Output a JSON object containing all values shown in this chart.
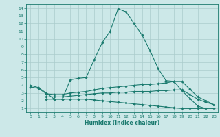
{
  "xlabel": "Humidex (Indice chaleur)",
  "background_color": "#cce8e8",
  "grid_color": "#aacccc",
  "line_color": "#1a7a6e",
  "xlim": [
    -0.5,
    23.5
  ],
  "ylim": [
    0.5,
    14.5
  ],
  "xticks": [
    0,
    1,
    2,
    3,
    4,
    5,
    6,
    7,
    8,
    9,
    10,
    11,
    12,
    13,
    14,
    15,
    16,
    17,
    18,
    19,
    20,
    21,
    22,
    23
  ],
  "yticks": [
    1,
    2,
    3,
    4,
    5,
    6,
    7,
    8,
    9,
    10,
    11,
    12,
    13,
    14
  ],
  "line1_x": [
    0,
    1,
    2,
    3,
    4,
    5,
    6,
    7,
    8,
    9,
    10,
    11,
    12,
    13,
    14,
    15,
    16,
    17,
    18,
    19,
    20,
    21,
    22
  ],
  "line1_y": [
    4.0,
    3.7,
    3.0,
    2.2,
    2.2,
    4.7,
    4.9,
    5.0,
    7.3,
    9.5,
    11.0,
    13.9,
    13.5,
    12.0,
    10.5,
    8.5,
    6.2,
    4.6,
    4.5,
    3.3,
    2.3,
    1.3,
    1.0
  ],
  "line2_x": [
    0,
    1,
    2,
    3,
    4,
    5,
    6,
    7,
    8,
    9,
    10,
    11,
    12,
    13,
    14,
    15,
    16,
    17,
    18,
    19,
    20,
    21,
    22,
    23
  ],
  "line2_y": [
    3.8,
    3.6,
    2.9,
    2.8,
    2.8,
    3.0,
    3.1,
    3.2,
    3.4,
    3.6,
    3.7,
    3.8,
    3.9,
    4.0,
    4.1,
    4.1,
    4.2,
    4.3,
    4.5,
    4.5,
    3.5,
    2.5,
    2.0,
    1.5
  ],
  "line3_x": [
    2,
    3,
    4,
    5,
    6,
    7,
    8,
    9,
    10,
    11,
    12,
    13,
    14,
    15,
    16,
    17,
    18,
    19,
    20,
    21,
    22,
    23
  ],
  "line3_y": [
    2.5,
    2.5,
    2.5,
    2.6,
    2.7,
    2.8,
    2.9,
    3.0,
    3.0,
    3.1,
    3.1,
    3.2,
    3.2,
    3.2,
    3.3,
    3.3,
    3.4,
    3.4,
    2.8,
    2.2,
    1.8,
    1.5
  ],
  "line4_x": [
    2,
    3,
    4,
    5,
    6,
    7,
    8,
    9,
    10,
    11,
    12,
    13,
    14,
    15,
    16,
    17,
    18,
    19,
    20,
    21,
    22,
    23
  ],
  "line4_y": [
    2.2,
    2.2,
    2.2,
    2.2,
    2.2,
    2.2,
    2.1,
    2.0,
    1.9,
    1.8,
    1.7,
    1.6,
    1.5,
    1.4,
    1.3,
    1.2,
    1.1,
    1.0,
    1.0,
    1.0,
    1.0,
    1.0
  ]
}
